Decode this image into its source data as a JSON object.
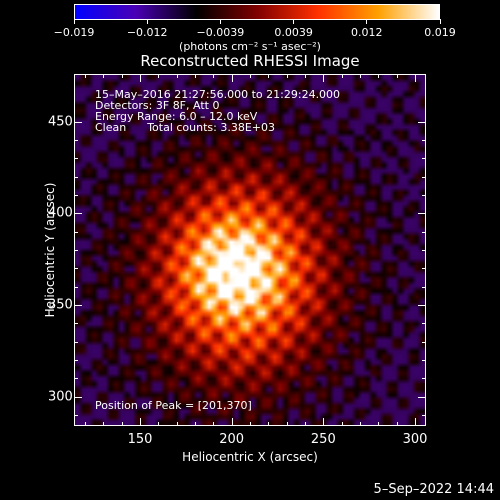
{
  "colorbar": {
    "ticks": [
      "−0.019",
      "−0.012",
      "−0.0039",
      "0.0039",
      "0.012",
      "0.019"
    ],
    "units": "(photons cm⁻² s⁻¹ asec⁻²)",
    "colors": [
      "#0000ff",
      "#4a00b4",
      "#000000",
      "#7f0000",
      "#ff3000",
      "#ffa000",
      "#ffffff"
    ]
  },
  "title": "Reconstructed RHESSI Image",
  "annotation": {
    "line1": "15–May–2016 21:27:56.000 to 21:29:24.000",
    "line2": "Detectors: 3F 8F, Att 0",
    "line3": "Energy Range: 6.0 – 12.0 keV",
    "line4": "Clean      Total counts: 3.38E+03",
    "peak": "Position of Peak = [201,370]"
  },
  "chart_data": {
    "type": "heatmap",
    "title": "Reconstructed RHESSI Image",
    "xlabel": "Heliocentric X (arcsec)",
    "ylabel": "Heliocentric Y (arcsec)",
    "xlim": [
      114,
      306
    ],
    "ylim": [
      284,
      476
    ],
    "xticks": [
      "150",
      "200",
      "250",
      "300"
    ],
    "yticks": [
      "300",
      "350",
      "400",
      "450"
    ],
    "peak_position": [
      201,
      370
    ],
    "colorbar_range": [
      -0.019,
      0.019
    ],
    "colormap": "blue-black-red-yellow-white"
  },
  "footer": "5–Sep–2022 14:44"
}
